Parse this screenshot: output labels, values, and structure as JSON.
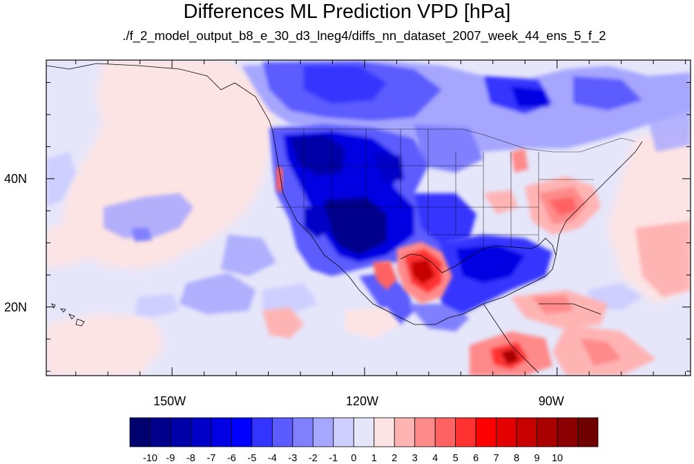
{
  "title": "Differences ML Prediction VPD [hPa]",
  "subtitle": "./f_2_model_output_b8_e_30_d3_lneg4/diffs_nn_dataset_2007_week_44_ens_5_f_2",
  "map": {
    "lon_range": [
      -169.6,
      -69.2
    ],
    "lat_range": [
      9.3,
      58.5
    ],
    "x_ticks": [
      {
        "label": "150W",
        "lon": -150
      },
      {
        "label": "120W",
        "lon": -120
      },
      {
        "label": "90W",
        "lon": -90
      }
    ],
    "y_ticks": [
      {
        "label": "40N",
        "lat": 40
      },
      {
        "label": "20N",
        "lat": 20
      }
    ]
  },
  "colorbar": {
    "colors": [
      "#00006f",
      "#00008c",
      "#0000a8",
      "#0000c6",
      "#0000e3",
      "#0000ff",
      "#3434ff",
      "#5b5bff",
      "#8080ff",
      "#a6a6ff",
      "#cfcfff",
      "#e6e6fa",
      "#fde4e4",
      "#ffb4b4",
      "#ff8a8a",
      "#ff6262",
      "#ff3232",
      "#ff0000",
      "#e30000",
      "#c70000",
      "#a90000",
      "#8b0000",
      "#6f0000"
    ],
    "labels": [
      "-10",
      "-9",
      "-8",
      "-7",
      "-6",
      "-5",
      "-4",
      "-3",
      "-2",
      "-1",
      "0",
      "1",
      "2",
      "3",
      "4",
      "5",
      "6",
      "7",
      "8",
      "9",
      "10"
    ]
  }
}
